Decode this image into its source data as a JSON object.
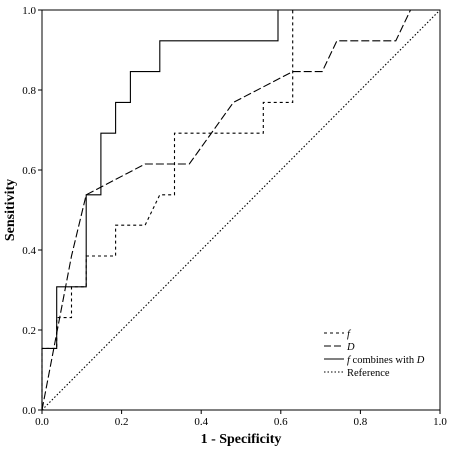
{
  "chart_data": {
    "type": "line",
    "xlabel": "1 - Specificity",
    "ylabel": "Sensitivity",
    "xlim": [
      0.0,
      1.0
    ],
    "ylim": [
      0.0,
      1.0
    ],
    "xticks": [
      "0.0",
      "0.2",
      "0.4",
      "0.6",
      "0.8",
      "1.0"
    ],
    "yticks": [
      "0.0",
      "0.2",
      "0.4",
      "0.6",
      "0.8",
      "1.0"
    ],
    "grid": false,
    "legend_position": "bottom-right",
    "series": [
      {
        "name": "f",
        "style": "short-dash",
        "points": [
          [
            0,
            0
          ],
          [
            0,
            0.154
          ],
          [
            0.037,
            0.154
          ],
          [
            0.037,
            0.231
          ],
          [
            0.074,
            0.231
          ],
          [
            0.074,
            0.308
          ],
          [
            0.111,
            0.308
          ],
          [
            0.111,
            0.385
          ],
          [
            0.185,
            0.385
          ],
          [
            0.185,
            0.462
          ],
          [
            0.259,
            0.462
          ],
          [
            0.296,
            0.538
          ],
          [
            0.333,
            0.538
          ],
          [
            0.333,
            0.692
          ],
          [
            0.556,
            0.692
          ],
          [
            0.556,
            0.769
          ],
          [
            0.63,
            0.769
          ],
          [
            0.63,
            1.0
          ],
          [
            1.0,
            1.0
          ]
        ]
      },
      {
        "name": "D",
        "style": "long-dash",
        "points": [
          [
            0,
            0
          ],
          [
            0.074,
            0.385
          ],
          [
            0.111,
            0.538
          ],
          [
            0.259,
            0.615
          ],
          [
            0.37,
            0.615
          ],
          [
            0.481,
            0.769
          ],
          [
            0.63,
            0.846
          ],
          [
            0.704,
            0.846
          ],
          [
            0.741,
            0.923
          ],
          [
            0.889,
            0.923
          ],
          [
            0.926,
            1.0
          ],
          [
            1.0,
            1.0
          ]
        ]
      },
      {
        "name_italic": "f",
        "name_rest": " combines with ",
        "name_italic2": "D",
        "style": "solid",
        "points": [
          [
            0,
            0
          ],
          [
            0,
            0.154
          ],
          [
            0.037,
            0.154
          ],
          [
            0.037,
            0.308
          ],
          [
            0.111,
            0.308
          ],
          [
            0.111,
            0.538
          ],
          [
            0.148,
            0.538
          ],
          [
            0.148,
            0.692
          ],
          [
            0.185,
            0.692
          ],
          [
            0.185,
            0.769
          ],
          [
            0.222,
            0.769
          ],
          [
            0.222,
            0.846
          ],
          [
            0.296,
            0.846
          ],
          [
            0.296,
            0.923
          ],
          [
            0.593,
            0.923
          ],
          [
            0.593,
            1.0
          ],
          [
            1.0,
            1.0
          ]
        ]
      },
      {
        "name": "Reference",
        "style": "dotted",
        "points": [
          [
            0,
            0
          ],
          [
            1,
            1
          ]
        ]
      }
    ]
  }
}
